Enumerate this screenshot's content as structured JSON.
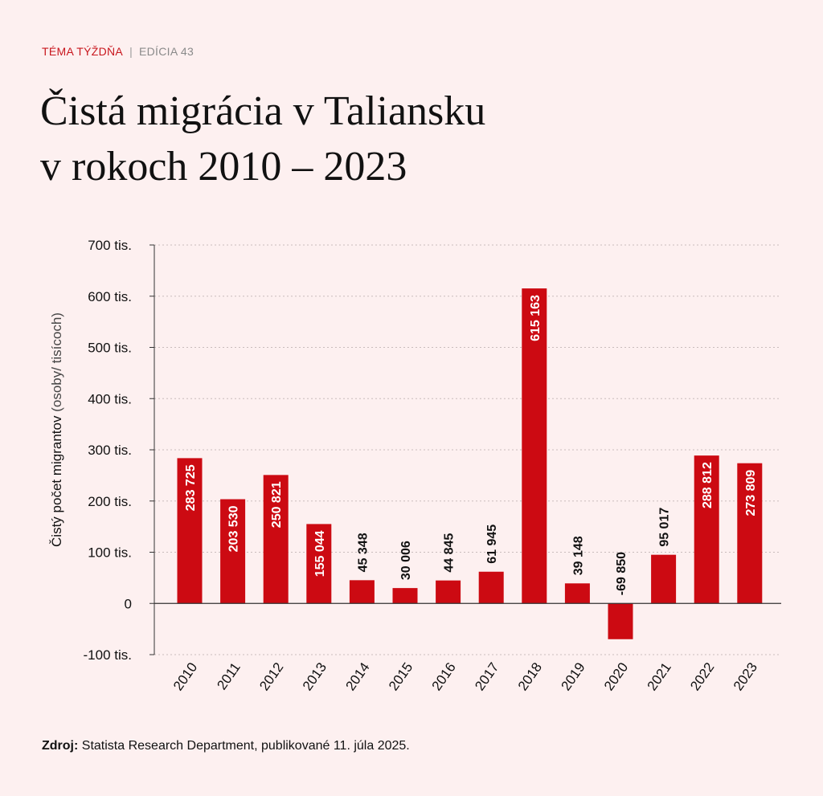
{
  "header": {
    "topic": "TÉMA TÝŽDŇA",
    "separator": "|",
    "edition": "EDÍCIA 43"
  },
  "title_line1": "Čistá migrácia v Taliansku",
  "title_line2": "v rokoch 2010 – 2023",
  "source": {
    "label": "Zdroj:",
    "text": "Statista Research Department, publikované 11. júla 2025."
  },
  "colors": {
    "bar": "#cc0a12",
    "background": "#fdf0f0",
    "label_inside": "#ffffff",
    "label_outside": "#111111"
  },
  "chart_data": {
    "type": "bar",
    "ylabel_bold": "Čistý počet migrantov",
    "ylabel_light": "(osoby/ tisícoch)",
    "xlabel": "",
    "ylim": [
      -100000,
      700000
    ],
    "grid": true,
    "categories": [
      "2010",
      "2011",
      "2012",
      "2013",
      "2014",
      "2015",
      "2016",
      "2017",
      "2018",
      "2019",
      "2020",
      "2021",
      "2022",
      "2023"
    ],
    "values": [
      283725,
      203530,
      250821,
      155044,
      45348,
      30006,
      44845,
      61945,
      615163,
      39148,
      -69850,
      95017,
      288812,
      273809
    ],
    "value_labels": [
      "283 725",
      "203 530",
      "250 821",
      "155 044",
      "45 348",
      "30 006",
      "44 845",
      "61 945",
      "615 163",
      "39 148",
      "-69 850",
      "95 017",
      "288 812",
      "273 809"
    ],
    "label_inside": [
      true,
      true,
      true,
      true,
      false,
      false,
      false,
      false,
      true,
      false,
      false,
      false,
      true,
      true
    ],
    "yticks": [
      {
        "value": 700000,
        "label": "700 tis."
      },
      {
        "value": 600000,
        "label": "600 tis."
      },
      {
        "value": 500000,
        "label": "500 tis."
      },
      {
        "value": 400000,
        "label": "400 tis."
      },
      {
        "value": 300000,
        "label": "300 tis."
      },
      {
        "value": 200000,
        "label": "200 tis."
      },
      {
        "value": 100000,
        "label": "100 tis."
      },
      {
        "value": 0,
        "label": "0"
      },
      {
        "value": -100000,
        "label": "-100 tis."
      }
    ]
  }
}
